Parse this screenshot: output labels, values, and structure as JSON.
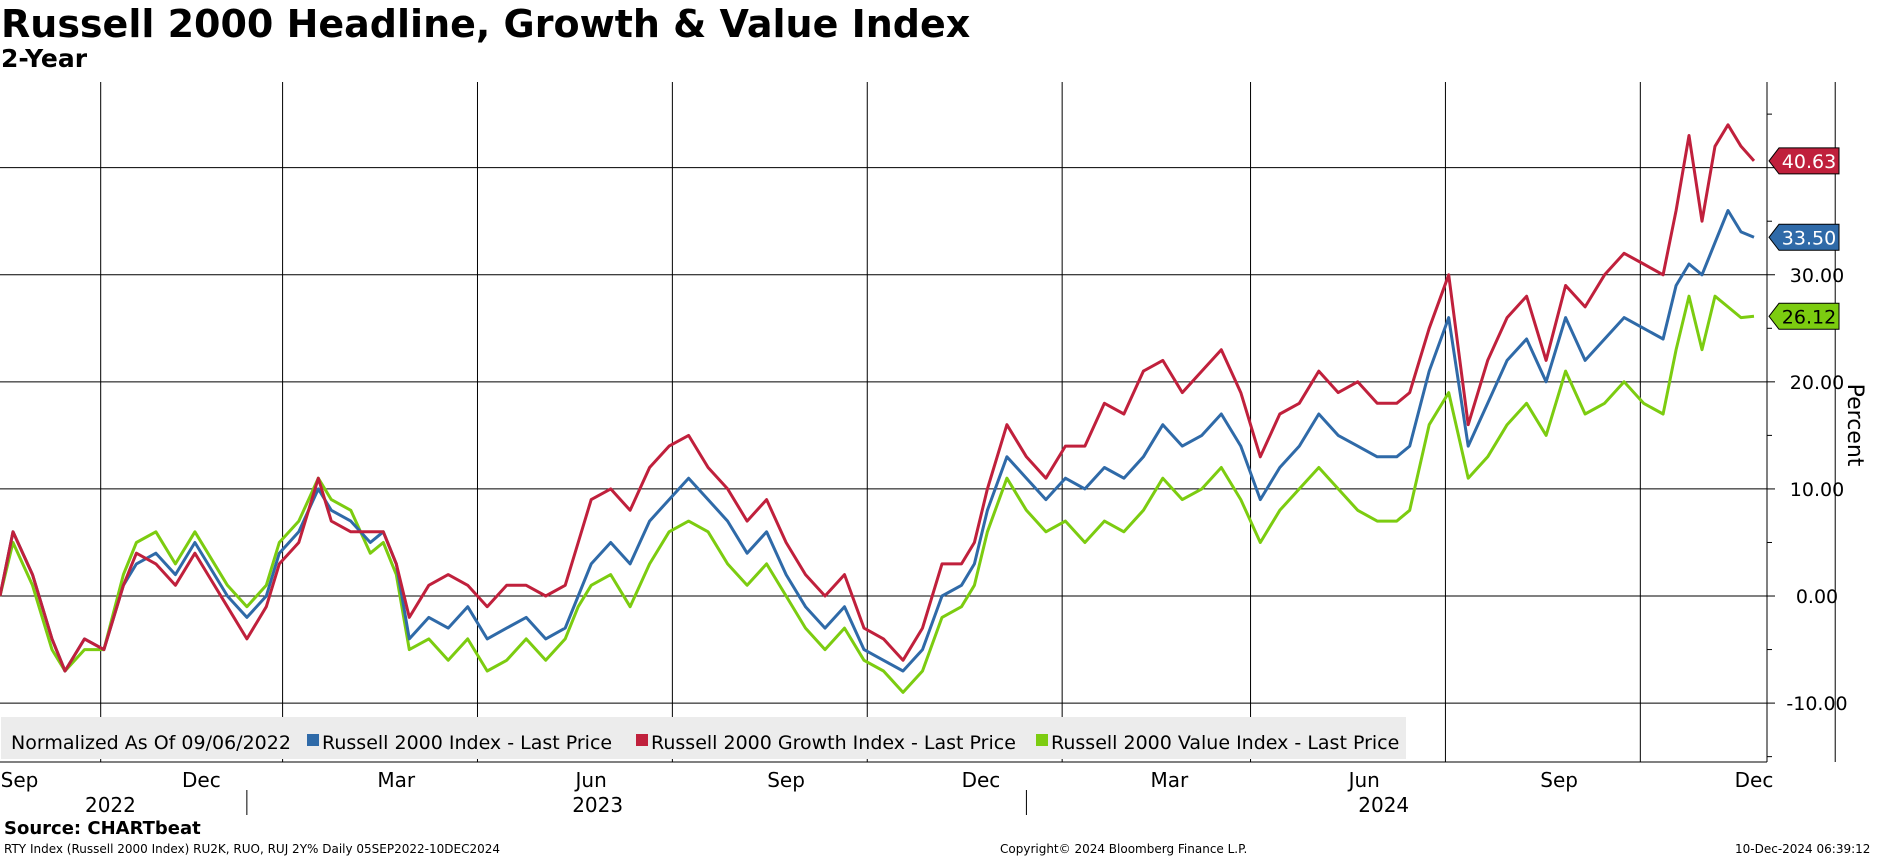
{
  "title": "Russell 2000 Headline, Growth & Value Index",
  "subtitle": "2-Year",
  "footer": {
    "source": "Source: CHARTbeat",
    "description": "RTY Index (Russell 2000 Index) RU2K, RUO, RUJ 2Y%  Daily 05SEP2022-10DEC2024",
    "copyright": "Copyright© 2024 Bloomberg Finance L.P.",
    "timestamp": "10-Dec-2024 06:39:12"
  },
  "colors": {
    "headline": "#2f6aa8",
    "growth": "#c0203c",
    "value": "#7ccc10",
    "grid": "#000000",
    "legend_bg": "#ececec"
  },
  "chart_data": {
    "type": "line",
    "ylabel": "Percent",
    "ylim": [
      -15.5,
      48
    ],
    "yticks": [
      -10,
      0,
      10,
      20,
      30
    ],
    "ytick_labels": [
      "-10.00",
      "0.00",
      "10.00",
      "20.00",
      "30.00"
    ],
    "xlim": [
      0,
      27.2
    ],
    "x_unit": "months since 2022-09-05",
    "month_ticks": [
      {
        "pos": 0.3,
        "label": "Sep"
      },
      {
        "pos": 3.1,
        "label": "Dec"
      },
      {
        "pos": 6.1,
        "label": "Mar"
      },
      {
        "pos": 9.1,
        "label": "Jun"
      },
      {
        "pos": 12.1,
        "label": "Sep"
      },
      {
        "pos": 15.1,
        "label": "Dec"
      },
      {
        "pos": 18.0,
        "label": "Mar"
      },
      {
        "pos": 21.0,
        "label": "Jun"
      },
      {
        "pos": 24.0,
        "label": "Sep"
      },
      {
        "pos": 27.0,
        "label": "Dec"
      }
    ],
    "year_labels": [
      {
        "pos": 1.7,
        "label": "2022"
      },
      {
        "pos": 9.2,
        "label": "2023"
      },
      {
        "pos": 21.3,
        "label": "2024"
      }
    ],
    "year_dividers": [
      3.8,
      15.8
    ],
    "legend": {
      "note": "Normalized As Of 09/06/2022",
      "entries": [
        "Russell 2000 Index - Last Price",
        "Russell 2000 Growth Index - Last Price",
        "Russell 2000 Value Index - Last Price"
      ]
    },
    "series": [
      {
        "name": "Russell 2000 Index - Last Price",
        "key": "headline",
        "last_label": "33.50",
        "x": [
          0,
          0.2,
          0.5,
          0.8,
          1.0,
          1.3,
          1.6,
          1.9,
          2.1,
          2.4,
          2.7,
          3.0,
          3.2,
          3.5,
          3.8,
          4.1,
          4.3,
          4.6,
          4.9,
          5.1,
          5.4,
          5.7,
          5.9,
          6.1,
          6.3,
          6.6,
          6.9,
          7.2,
          7.5,
          7.8,
          8.1,
          8.4,
          8.7,
          8.9,
          9.1,
          9.4,
          9.7,
          10.0,
          10.3,
          10.6,
          10.9,
          11.2,
          11.5,
          11.8,
          12.1,
          12.4,
          12.7,
          13.0,
          13.3,
          13.6,
          13.9,
          14.2,
          14.5,
          14.8,
          15.0,
          15.2,
          15.5,
          15.8,
          16.1,
          16.4,
          16.7,
          17.0,
          17.3,
          17.6,
          17.9,
          18.2,
          18.5,
          18.8,
          19.1,
          19.4,
          19.7,
          20.0,
          20.3,
          20.6,
          20.9,
          21.2,
          21.5,
          21.7,
          22.0,
          22.3,
          22.6,
          22.9,
          23.2,
          23.5,
          23.8,
          24.1,
          24.4,
          24.7,
          25.0,
          25.3,
          25.6,
          25.8,
          26.0,
          26.2,
          26.4,
          26.6,
          26.8,
          27.0
        ],
        "y": [
          0,
          6,
          2,
          -4,
          -7,
          -4,
          -5,
          1,
          3,
          4,
          2,
          5,
          3,
          0,
          -2,
          0,
          4,
          6,
          10,
          8,
          7,
          5,
          6,
          3,
          -4,
          -2,
          -3,
          -1,
          -4,
          -3,
          -2,
          -4,
          -3,
          0,
          3,
          5,
          3,
          7,
          9,
          11,
          9,
          7,
          4,
          6,
          2,
          -1,
          -3,
          -1,
          -5,
          -6,
          -7,
          -5,
          0,
          1,
          3,
          8,
          13,
          11,
          9,
          11,
          10,
          12,
          11,
          13,
          16,
          14,
          15,
          17,
          14,
          9,
          12,
          14,
          17,
          15,
          14,
          13,
          13,
          14,
          21,
          26,
          14,
          18,
          22,
          24,
          20,
          26,
          22,
          24,
          26,
          25,
          24,
          29,
          31,
          30,
          33,
          36,
          34,
          33.5
        ]
      },
      {
        "name": "Russell 2000 Growth Index - Last Price",
        "key": "growth",
        "last_label": "40.63",
        "x": [
          0,
          0.2,
          0.5,
          0.8,
          1.0,
          1.3,
          1.6,
          1.9,
          2.1,
          2.4,
          2.7,
          3.0,
          3.2,
          3.5,
          3.8,
          4.1,
          4.3,
          4.6,
          4.9,
          5.1,
          5.4,
          5.7,
          5.9,
          6.1,
          6.3,
          6.6,
          6.9,
          7.2,
          7.5,
          7.8,
          8.1,
          8.4,
          8.7,
          8.9,
          9.1,
          9.4,
          9.7,
          10.0,
          10.3,
          10.6,
          10.9,
          11.2,
          11.5,
          11.8,
          12.1,
          12.4,
          12.7,
          13.0,
          13.3,
          13.6,
          13.9,
          14.2,
          14.5,
          14.8,
          15.0,
          15.2,
          15.5,
          15.8,
          16.1,
          16.4,
          16.7,
          17.0,
          17.3,
          17.6,
          17.9,
          18.2,
          18.5,
          18.8,
          19.1,
          19.4,
          19.7,
          20.0,
          20.3,
          20.6,
          20.9,
          21.2,
          21.5,
          21.7,
          22.0,
          22.3,
          22.6,
          22.9,
          23.2,
          23.5,
          23.8,
          24.1,
          24.4,
          24.7,
          25.0,
          25.3,
          25.6,
          25.8,
          26.0,
          26.2,
          26.4,
          26.6,
          26.8,
          27.0
        ],
        "y": [
          0,
          6,
          2,
          -4,
          -7,
          -4,
          -5,
          1,
          4,
          3,
          1,
          4,
          2,
          -1,
          -4,
          -1,
          3,
          5,
          11,
          7,
          6,
          6,
          6,
          3,
          -2,
          1,
          2,
          1,
          -1,
          1,
          1,
          0,
          1,
          5,
          9,
          10,
          8,
          12,
          14,
          15,
          12,
          10,
          7,
          9,
          5,
          2,
          0,
          2,
          -3,
          -4,
          -6,
          -3,
          3,
          3,
          5,
          10,
          16,
          13,
          11,
          14,
          14,
          18,
          17,
          21,
          22,
          19,
          21,
          23,
          19,
          13,
          17,
          18,
          21,
          19,
          20,
          18,
          18,
          19,
          25,
          30,
          16,
          22,
          26,
          28,
          22,
          29,
          27,
          30,
          32,
          31,
          30,
          36,
          43,
          35,
          42,
          44,
          42,
          40.63
        ]
      },
      {
        "name": "Russell 2000 Value Index - Last Price",
        "key": "value",
        "last_label": "26.12",
        "x": [
          0,
          0.2,
          0.5,
          0.8,
          1.0,
          1.3,
          1.6,
          1.9,
          2.1,
          2.4,
          2.7,
          3.0,
          3.2,
          3.5,
          3.8,
          4.1,
          4.3,
          4.6,
          4.9,
          5.1,
          5.4,
          5.7,
          5.9,
          6.1,
          6.3,
          6.6,
          6.9,
          7.2,
          7.5,
          7.8,
          8.1,
          8.4,
          8.7,
          8.9,
          9.1,
          9.4,
          9.7,
          10.0,
          10.3,
          10.6,
          10.9,
          11.2,
          11.5,
          11.8,
          12.1,
          12.4,
          12.7,
          13.0,
          13.3,
          13.6,
          13.9,
          14.2,
          14.5,
          14.8,
          15.0,
          15.2,
          15.5,
          15.8,
          16.1,
          16.4,
          16.7,
          17.0,
          17.3,
          17.6,
          17.9,
          18.2,
          18.5,
          18.8,
          19.1,
          19.4,
          19.7,
          20.0,
          20.3,
          20.6,
          20.9,
          21.2,
          21.5,
          21.7,
          22.0,
          22.3,
          22.6,
          22.9,
          23.2,
          23.5,
          23.8,
          24.1,
          24.4,
          24.7,
          25.0,
          25.3,
          25.6,
          25.8,
          26.0,
          26.2,
          26.4,
          26.6,
          26.8,
          27.0
        ],
        "y": [
          0,
          5,
          1,
          -5,
          -7,
          -5,
          -5,
          2,
          5,
          6,
          3,
          6,
          4,
          1,
          -1,
          1,
          5,
          7,
          11,
          9,
          8,
          4,
          5,
          2,
          -5,
          -4,
          -6,
          -4,
          -7,
          -6,
          -4,
          -6,
          -4,
          -1,
          1,
          2,
          -1,
          3,
          6,
          7,
          6,
          3,
          1,
          3,
          0,
          -3,
          -5,
          -3,
          -6,
          -7,
          -9,
          -7,
          -2,
          -1,
          1,
          6,
          11,
          8,
          6,
          7,
          5,
          7,
          6,
          8,
          11,
          9,
          10,
          12,
          9,
          5,
          8,
          10,
          12,
          10,
          8,
          7,
          7,
          8,
          16,
          19,
          11,
          13,
          16,
          18,
          15,
          21,
          17,
          18,
          20,
          18,
          17,
          23,
          28,
          23,
          28,
          27,
          26,
          26.12
        ]
      }
    ]
  }
}
